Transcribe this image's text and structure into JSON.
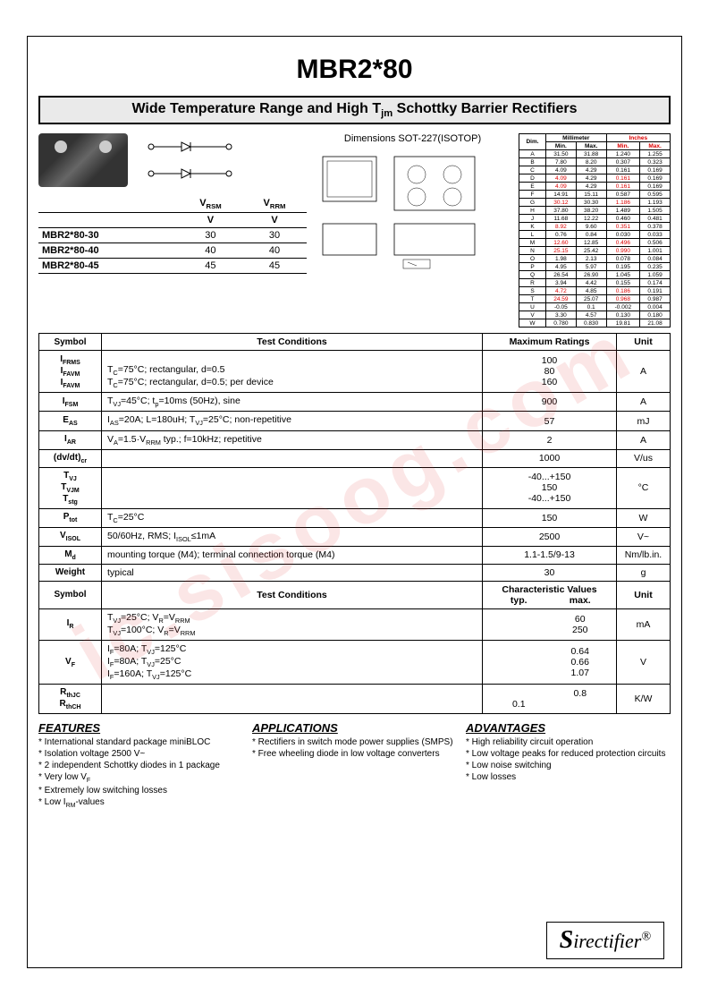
{
  "title": "MBR2*80",
  "subtitle_pre": "Wide Temperature Range and High T",
  "subtitle_sub": "jm",
  "subtitle_post": " Schottky Barrier Rectifiers",
  "dim_title": "Dimensions SOT-227(ISOTOP)",
  "vheaders": {
    "vrsm": "VRSM",
    "vrrm": "VRRM",
    "unit": "V"
  },
  "vrows": [
    {
      "part": "MBR2*80-30",
      "vrsm": "30",
      "vrrm": "30"
    },
    {
      "part": "MBR2*80-40",
      "vrsm": "40",
      "vrrm": "40"
    },
    {
      "part": "MBR2*80-45",
      "vrsm": "45",
      "vrrm": "45"
    }
  ],
  "dim_head": {
    "dim": "Dim.",
    "mm": "Millimeter",
    "in": "Inches",
    "min": "Min.",
    "max": "Max."
  },
  "dims": [
    {
      "l": "A",
      "a": "31.50",
      "b": "31.88",
      "c": "1.240",
      "d": "1.255"
    },
    {
      "l": "B",
      "a": "7.80",
      "b": "8.20",
      "c": "0.307",
      "d": "0.323"
    },
    {
      "l": "C",
      "a": "4.09",
      "b": "4.29",
      "c": "0.161",
      "d": "0.169"
    },
    {
      "l": "D",
      "a": "4.09",
      "b": "4.29",
      "c": "0.161",
      "d": "0.169"
    },
    {
      "l": "E",
      "a": "4.09",
      "b": "4.29",
      "c": "0.161",
      "d": "0.169"
    },
    {
      "l": "F",
      "a": "14.91",
      "b": "15.11",
      "c": "0.587",
      "d": "0.595"
    },
    {
      "l": "G",
      "a": "30.12",
      "b": "30.30",
      "c": "1.186",
      "d": "1.193"
    },
    {
      "l": "H",
      "a": "37.80",
      "b": "38.20",
      "c": "1.489",
      "d": "1.505"
    },
    {
      "l": "J",
      "a": "11.68",
      "b": "12.22",
      "c": "0.460",
      "d": "0.481"
    },
    {
      "l": "K",
      "a": "8.92",
      "b": "9.60",
      "c": "0.351",
      "d": "0.378"
    },
    {
      "l": "L",
      "a": "0.76",
      "b": "0.84",
      "c": "0.030",
      "d": "0.033"
    },
    {
      "l": "M",
      "a": "12.60",
      "b": "12.85",
      "c": "0.496",
      "d": "0.506"
    },
    {
      "l": "N",
      "a": "25.15",
      "b": "25.42",
      "c": "0.990",
      "d": "1.001"
    },
    {
      "l": "O",
      "a": "1.98",
      "b": "2.13",
      "c": "0.078",
      "d": "0.084"
    },
    {
      "l": "P",
      "a": "4.95",
      "b": "5.97",
      "c": "0.195",
      "d": "0.235"
    },
    {
      "l": "Q",
      "a": "26.54",
      "b": "26.90",
      "c": "1.045",
      "d": "1.059"
    },
    {
      "l": "R",
      "a": "3.94",
      "b": "4.42",
      "c": "0.155",
      "d": "0.174"
    },
    {
      "l": "S",
      "a": "4.72",
      "b": "4.85",
      "c": "0.186",
      "d": "0.191"
    },
    {
      "l": "T",
      "a": "24.59",
      "b": "25.07",
      "c": "0.968",
      "d": "0.987"
    },
    {
      "l": "U",
      "a": "-0.05",
      "b": "0.1",
      "c": "-0.002",
      "d": "0.004"
    },
    {
      "l": "V",
      "a": "3.30",
      "b": "4.57",
      "c": "0.130",
      "d": "0.180"
    },
    {
      "l": "W",
      "a": "0.780",
      "b": "0.830",
      "c": "19.81",
      "d": "21.08"
    }
  ],
  "main_head": {
    "sym": "Symbol",
    "cond": "Test Conditions",
    "max": "Maximum Ratings",
    "unit": "Unit",
    "char": "Characteristic Values",
    "typ": "typ.",
    "maxv": "max."
  },
  "ratings": [
    {
      "sym": "I<sub>FRMS</sub><br>I<sub>FAVM</sub><br>I<sub>FAVM</sub>",
      "cond": "<br>T<sub>C</sub>=75°C; rectangular, d=0.5<br>T<sub>C</sub>=75°C; rectangular, d=0.5; per device",
      "val": "100<br>80<br>160",
      "unit": "A"
    },
    {
      "sym": "I<sub>FSM</sub>",
      "cond": "T<sub>VJ</sub>=45°C; t<sub>p</sub>=10ms (50Hz), sine",
      "val": "900",
      "unit": "A"
    },
    {
      "sym": "E<sub>AS</sub>",
      "cond": "I<sub>AS</sub>=20A; L=180uH; T<sub>VJ</sub>=25°C; non-repetitive",
      "val": "57",
      "unit": "mJ"
    },
    {
      "sym": "I<sub>AR</sub>",
      "cond": "V<sub>A</sub>=1.5·V<sub>RRM</sub> typ.; f=10kHz; repetitive",
      "val": "2",
      "unit": "A"
    },
    {
      "sym": "(dv/dt)<sub>cr</sub>",
      "cond": "",
      "val": "1000",
      "unit": "V/us"
    },
    {
      "sym": "T<sub>VJ</sub><br>T<sub>VJM</sub><br>T<sub>stg</sub>",
      "cond": "",
      "val": "-40...+150<br>150<br>-40...+150",
      "unit": "°C"
    },
    {
      "sym": "P<sub>tot</sub>",
      "cond": "T<sub>C</sub>=25°C",
      "val": "150",
      "unit": "W"
    },
    {
      "sym": "V<sub>ISOL</sub>",
      "cond": "50/60Hz, RMS; I<sub>ISOL</sub>≤1mA",
      "val": "2500",
      "unit": "V~"
    },
    {
      "sym": "M<sub>d</sub>",
      "cond": "mounting torque (M4); terminal connection torque (M4)",
      "val": "1.1-1.5/9-13",
      "unit": "Nm/lb.in."
    },
    {
      "sym": "Weight",
      "cond": "typical",
      "val": "30",
      "unit": "g"
    }
  ],
  "chars": [
    {
      "sym": "I<sub>R</sub>",
      "cond": "T<sub>VJ</sub>=25°C; V<sub>R</sub>=V<sub>RRM</sub><br>T<sub>VJ</sub>=100°C; V<sub>R</sub>=V<sub>RRM</sub>",
      "typ": "",
      "max": "60<br>250",
      "unit": "mA"
    },
    {
      "sym": "V<sub>F</sub>",
      "cond": "I<sub>F</sub>=80A; T<sub>VJ</sub>=125°C<br>I<sub>F</sub>=80A; T<sub>VJ</sub>=25°C<br>I<sub>F</sub>=160A; T<sub>VJ</sub>=125°C",
      "typ": "",
      "max": "0.64<br>0.66<br>1.07",
      "unit": "V"
    },
    {
      "sym": "R<sub>thJC</sub><br>R<sub>thCH</sub>",
      "cond": "",
      "typ": "<br>0.1",
      "max": "0.8",
      "unit": "K/W"
    }
  ],
  "features": {
    "title": "FEATURES",
    "items": [
      "International standard package miniBLOC",
      "Isolation voltage 2500 V~",
      "2 independent Schottky diodes in 1 package",
      "Very low V<sub>F</sub>",
      "Extremely low switching losses",
      "Low I<sub>RM</sub>-values"
    ]
  },
  "applications": {
    "title": "APPLICATIONS",
    "items": [
      "Rectifiers in switch mode power supplies (SMPS)",
      "Free wheeling diode in low voltage converters"
    ]
  },
  "advantages": {
    "title": "ADVANTAGES",
    "items": [
      "High reliability circuit operation",
      "Low voltage peaks for reduced protection circuits",
      "Low noise switching",
      "Low losses"
    ]
  },
  "logo": {
    "s": "S",
    "rest": "irectifier",
    "r": "®"
  },
  "watermark": "ic.sisoog.com"
}
